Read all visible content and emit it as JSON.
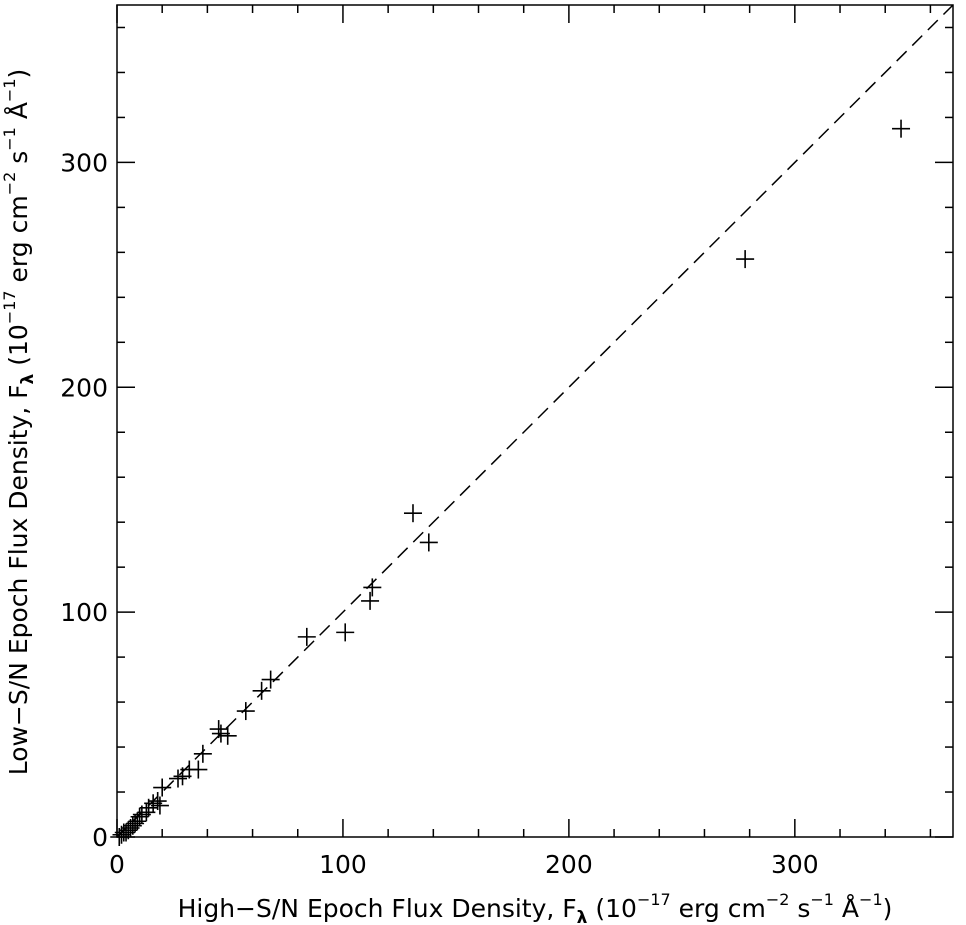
{
  "chart_data": {
    "type": "scatter",
    "title": "",
    "xlabel": {
      "main": "High−S/N Epoch Flux Density, F",
      "sub": "λ",
      "paren_open": " (10",
      "exp1": "−17",
      "mid1": " erg cm",
      "exp2": "−2",
      "mid2": " s",
      "exp3": "−1",
      "mid3": " Å",
      "exp4": "−1",
      "close": ")"
    },
    "ylabel": {
      "main": "Low−S/N Epoch Flux Density, F",
      "sub": "λ",
      "paren_open": " (10",
      "exp1": "−17",
      "mid1": " erg cm",
      "exp2": "−2",
      "mid2": " s",
      "exp3": "−1",
      "mid3": " Å",
      "exp4": "−1",
      "close": ")"
    },
    "xlim": [
      0,
      370
    ],
    "ylim": [
      0,
      370
    ],
    "x_major_ticks": [
      0,
      100,
      200,
      300
    ],
    "y_major_ticks": [
      0,
      100,
      200,
      300
    ],
    "x_tick_labels": [
      "0",
      "100",
      "200",
      "300"
    ],
    "y_tick_labels": [
      "0",
      "100",
      "200",
      "300"
    ],
    "minor_tick_step": 20,
    "reference_line": {
      "style": "dashed",
      "x": [
        0,
        370
      ],
      "y": [
        0,
        370
      ]
    },
    "points": [
      {
        "x": 347,
        "y": 315
      },
      {
        "x": 278,
        "y": 257
      },
      {
        "x": 131,
        "y": 144
      },
      {
        "x": 138,
        "y": 131
      },
      {
        "x": 113,
        "y": 111
      },
      {
        "x": 112,
        "y": 105
      },
      {
        "x": 101,
        "y": 91
      },
      {
        "x": 84,
        "y": 89
      },
      {
        "x": 68,
        "y": 70
      },
      {
        "x": 64,
        "y": 65
      },
      {
        "x": 57,
        "y": 56
      },
      {
        "x": 45,
        "y": 48
      },
      {
        "x": 46,
        "y": 46
      },
      {
        "x": 49,
        "y": 45
      },
      {
        "x": 38,
        "y": 37
      },
      {
        "x": 36,
        "y": 30
      },
      {
        "x": 32,
        "y": 30
      },
      {
        "x": 29,
        "y": 27
      },
      {
        "x": 27,
        "y": 26
      },
      {
        "x": 20,
        "y": 22
      },
      {
        "x": 18,
        "y": 16
      },
      {
        "x": 16,
        "y": 15
      },
      {
        "x": 19,
        "y": 14
      },
      {
        "x": 14,
        "y": 13
      },
      {
        "x": 13,
        "y": 11
      },
      {
        "x": 11,
        "y": 10
      },
      {
        "x": 10,
        "y": 9
      },
      {
        "x": 9,
        "y": 7
      },
      {
        "x": 8,
        "y": 6
      },
      {
        "x": 7,
        "y": 5
      },
      {
        "x": 6,
        "y": 4
      },
      {
        "x": 5,
        "y": 3
      },
      {
        "x": 4,
        "y": 2
      },
      {
        "x": 3,
        "y": 2
      },
      {
        "x": 2,
        "y": 1
      },
      {
        "x": 1,
        "y": 0
      }
    ],
    "legend": "none",
    "grid": false
  }
}
